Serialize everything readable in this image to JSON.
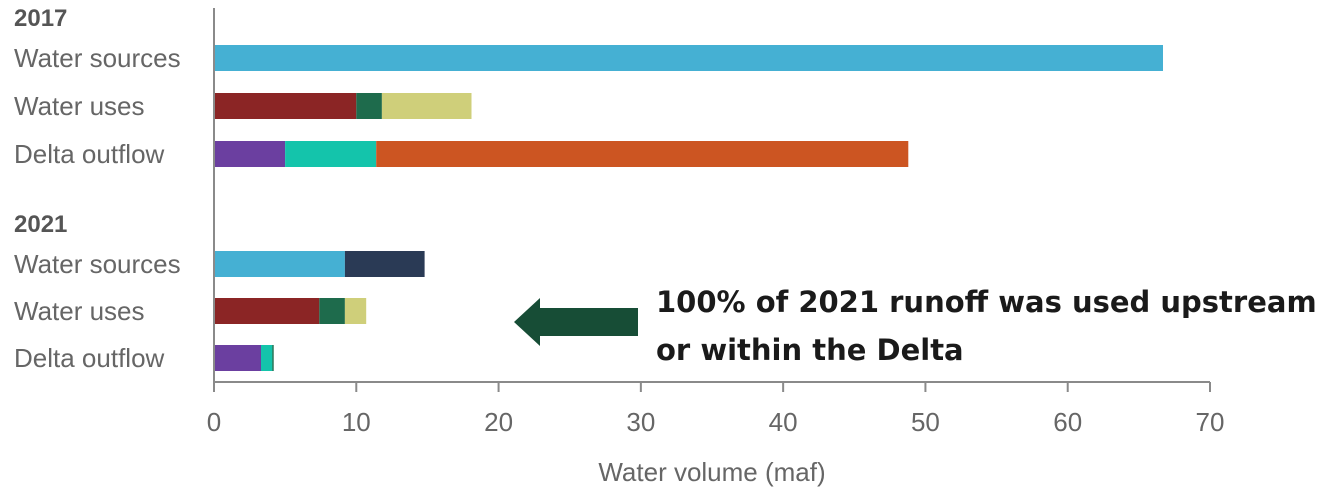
{
  "chart_data": {
    "type": "bar",
    "orientation": "horizontal",
    "stacked": true,
    "xlabel": "Water volume (maf)",
    "xlim": [
      0,
      70
    ],
    "xticks": [
      0,
      10,
      20,
      30,
      40,
      50,
      60,
      70
    ],
    "grid": false,
    "groups": [
      {
        "label": "2017",
        "bars": [
          {
            "label": "Water sources",
            "segments": [
              {
                "value": 66.7,
                "color": "#45b0d3"
              }
            ]
          },
          {
            "label": "Water uses",
            "segments": [
              {
                "value": 10.0,
                "color": "#8b2525"
              },
              {
                "value": 1.8,
                "color": "#1e6b4c"
              },
              {
                "value": 6.3,
                "color": "#cfcf7a"
              }
            ]
          },
          {
            "label": "Delta outflow",
            "segments": [
              {
                "value": 5.0,
                "color": "#6b3fa0"
              },
              {
                "value": 6.4,
                "color": "#14c4ab"
              },
              {
                "value": 37.4,
                "color": "#cc5522"
              }
            ]
          }
        ]
      },
      {
        "label": "2021",
        "bars": [
          {
            "label": "Water sources",
            "segments": [
              {
                "value": 9.2,
                "color": "#45b0d3"
              },
              {
                "value": 5.6,
                "color": "#2a3a55"
              }
            ]
          },
          {
            "label": "Water uses",
            "segments": [
              {
                "value": 7.4,
                "color": "#8b2525"
              },
              {
                "value": 1.8,
                "color": "#1e6b4c"
              },
              {
                "value": 1.5,
                "color": "#cfcf7a"
              }
            ]
          },
          {
            "label": "Delta outflow",
            "segments": [
              {
                "value": 3.3,
                "color": "#6b3fa0"
              },
              {
                "value": 0.8,
                "color": "#14c4ab"
              },
              {
                "value": 0.1,
                "color": "#1e6b4c"
              }
            ]
          }
        ]
      }
    ],
    "annotation": {
      "line1": "100% of 2021 runoff was used upstream",
      "line2": "or within the Delta",
      "arrow_color": "#174d36"
    }
  }
}
